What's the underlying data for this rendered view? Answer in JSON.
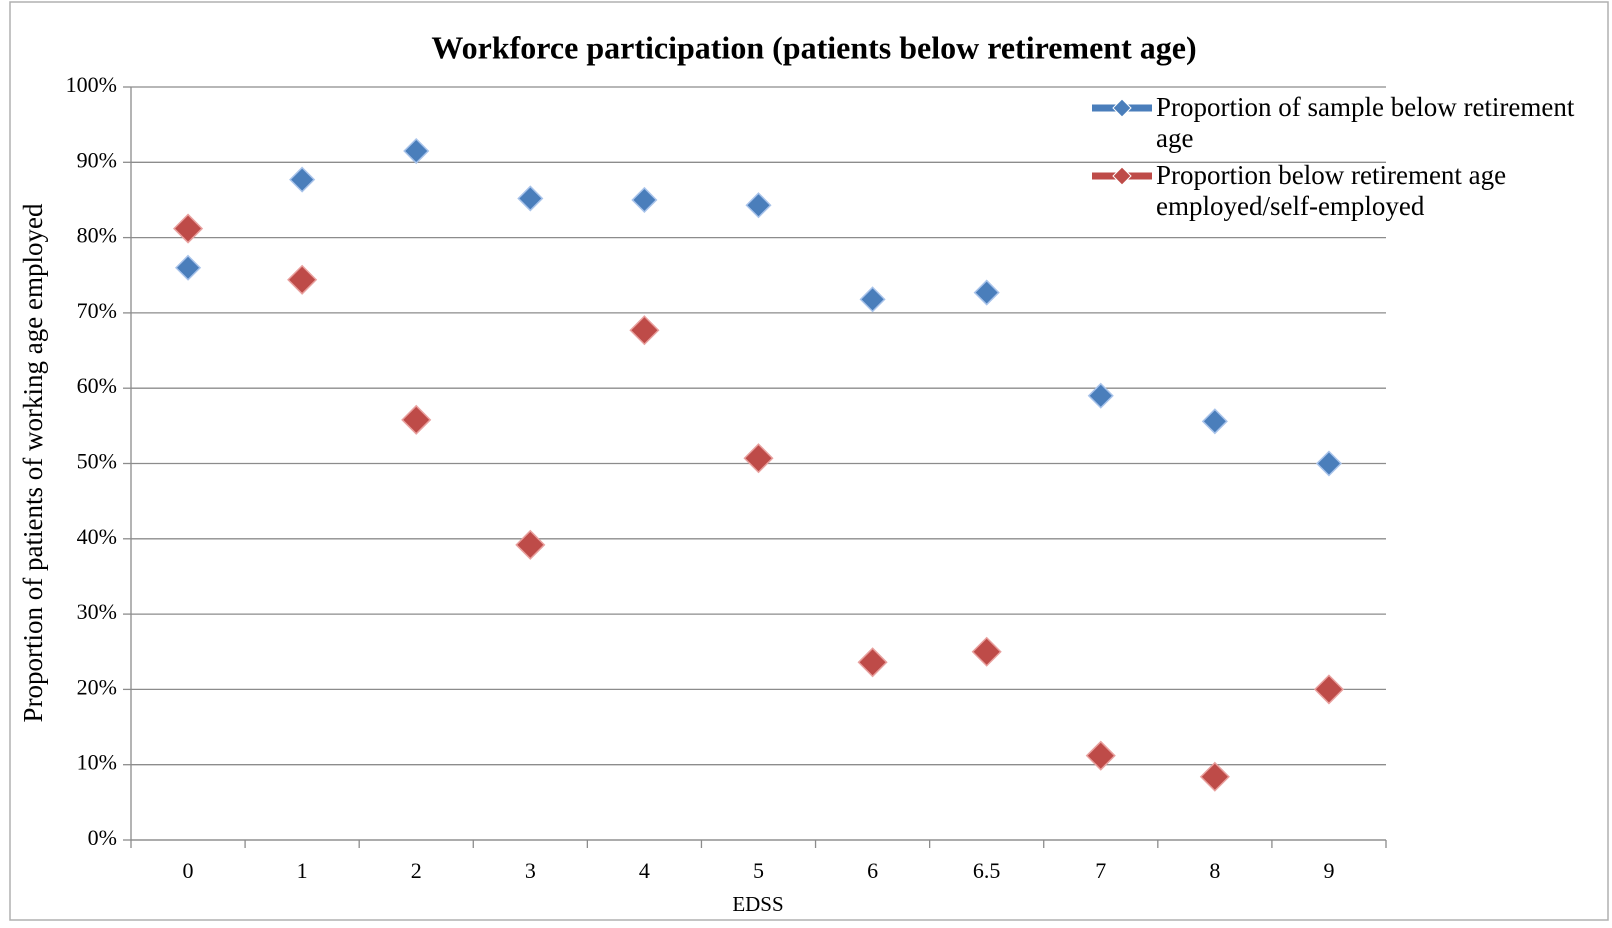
{
  "chart_data": {
    "type": "line",
    "title": "Workforce participation (patients below retirement age)",
    "x_label": "EDSS",
    "y_label": "Proportion of patients of working age employed",
    "categories": [
      "0",
      "1",
      "2",
      "3",
      "4",
      "5",
      "6",
      "6.5",
      "7",
      "8",
      "9"
    ],
    "series": [
      {
        "name": "Proportion of sample below retirement age",
        "color": "#4a7ebb",
        "values": [
          76,
          87.7,
          91.5,
          85.2,
          85,
          84.3,
          71.8,
          72.7,
          59,
          55.6,
          50
        ]
      },
      {
        "name": "Proportion below retirement age employed/self-employed",
        "color": "#be4b48",
        "values": [
          81.2,
          74.4,
          55.8,
          39.2,
          67.7,
          50.7,
          23.6,
          25,
          11.2,
          8.4,
          20
        ]
      }
    ],
    "ylim": [
      0,
      100
    ],
    "yticks": [
      {
        "value": 0,
        "label": "0%"
      },
      {
        "value": 10,
        "label": "10%"
      },
      {
        "value": 20,
        "label": "20%"
      },
      {
        "value": 30,
        "label": "30%"
      },
      {
        "value": 40,
        "label": "40%"
      },
      {
        "value": 50,
        "label": "50%"
      },
      {
        "value": 60,
        "label": "60%"
      },
      {
        "value": 70,
        "label": "70%"
      },
      {
        "value": 80,
        "label": "80%"
      },
      {
        "value": 90,
        "label": "90%"
      },
      {
        "value": 100,
        "label": "100%"
      }
    ],
    "grid": true,
    "legend": "top-right"
  }
}
